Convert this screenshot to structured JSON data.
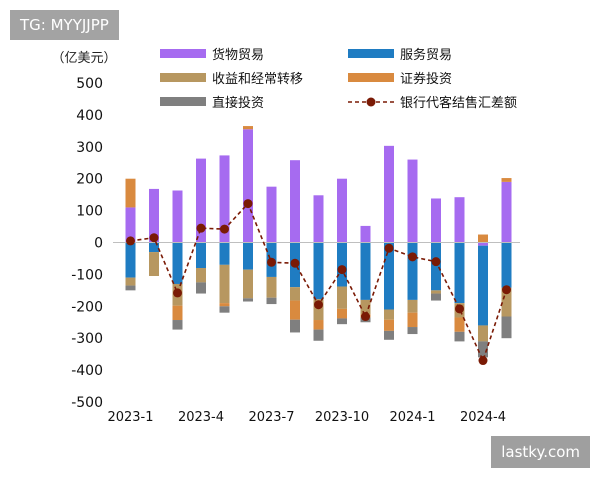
{
  "header_tag": "TG: MYYJJPP",
  "watermark": "lastky.com",
  "chart_data": {
    "type": "bar",
    "stacked": true,
    "unit_label": "（亿美元）",
    "ylim": [
      -500,
      500
    ],
    "yticks": [
      500,
      400,
      300,
      200,
      100,
      0,
      -100,
      -200,
      -300,
      -400,
      -500
    ],
    "grid": false,
    "legend_position": "top",
    "categories": [
      "2023-1",
      "2023-2",
      "2023-3",
      "2023-4",
      "2023-5",
      "2023-6",
      "2023-7",
      "2023-8",
      "2023-9",
      "2023-10",
      "2023-11",
      "2023-12",
      "2024-1",
      "2024-2",
      "2024-3",
      "2024-4",
      "2024-5",
      "2024-6"
    ],
    "xtick_labels": [
      "2023-1",
      "",
      "",
      "2023-4",
      "",
      "",
      "2023-7",
      "",
      "",
      "2023-10",
      "",
      "",
      "2024-1",
      "",
      "",
      "2024-4",
      "",
      ""
    ],
    "series": [
      {
        "name": "货物贸易",
        "kind": "bar",
        "color": "#a66bf0",
        "values": [
          110,
          168,
          163,
          263,
          273,
          355,
          175,
          258,
          148,
          200,
          52,
          303,
          260,
          138,
          142,
          -10,
          190,
          null
        ]
      },
      {
        "name": "服务贸易",
        "kind": "bar",
        "color": "#1f7cc2",
        "values": [
          -110,
          -30,
          -130,
          -80,
          -70,
          -85,
          -108,
          -140,
          -178,
          -138,
          -180,
          -210,
          -180,
          -150,
          -190,
          -250,
          -142,
          null
        ]
      },
      {
        "name": "收益和经常转移",
        "kind": "bar",
        "color": "#b79760",
        "values": [
          -25,
          -75,
          -68,
          -45,
          -120,
          -90,
          -65,
          -42,
          -65,
          -70,
          -45,
          -32,
          -40,
          -10,
          -45,
          -50,
          -90,
          null
        ]
      },
      {
        "name": "证券投资",
        "kind": "bar",
        "color": "#d98a3f",
        "values": [
          90,
          0,
          -45,
          0,
          -10,
          10,
          0,
          -60,
          -30,
          -30,
          -10,
          -35,
          -45,
          0,
          -45,
          25,
          12,
          null
        ]
      },
      {
        "name": "直接投资",
        "kind": "bar",
        "color": "#7f7f7f",
        "values": [
          -15,
          0,
          -30,
          -35,
          -20,
          -10,
          -20,
          -40,
          -35,
          -18,
          -15,
          -28,
          -22,
          -22,
          -30,
          -50,
          -68,
          null
        ]
      },
      {
        "name": "银行代客结售汇差额",
        "kind": "line",
        "color": "#7a1a05",
        "values": [
          5,
          15,
          -158,
          45,
          42,
          122,
          -62,
          -65,
          -195,
          -85,
          -232,
          -18,
          -45,
          -60,
          -208,
          -370,
          -148,
          null
        ]
      }
    ]
  }
}
